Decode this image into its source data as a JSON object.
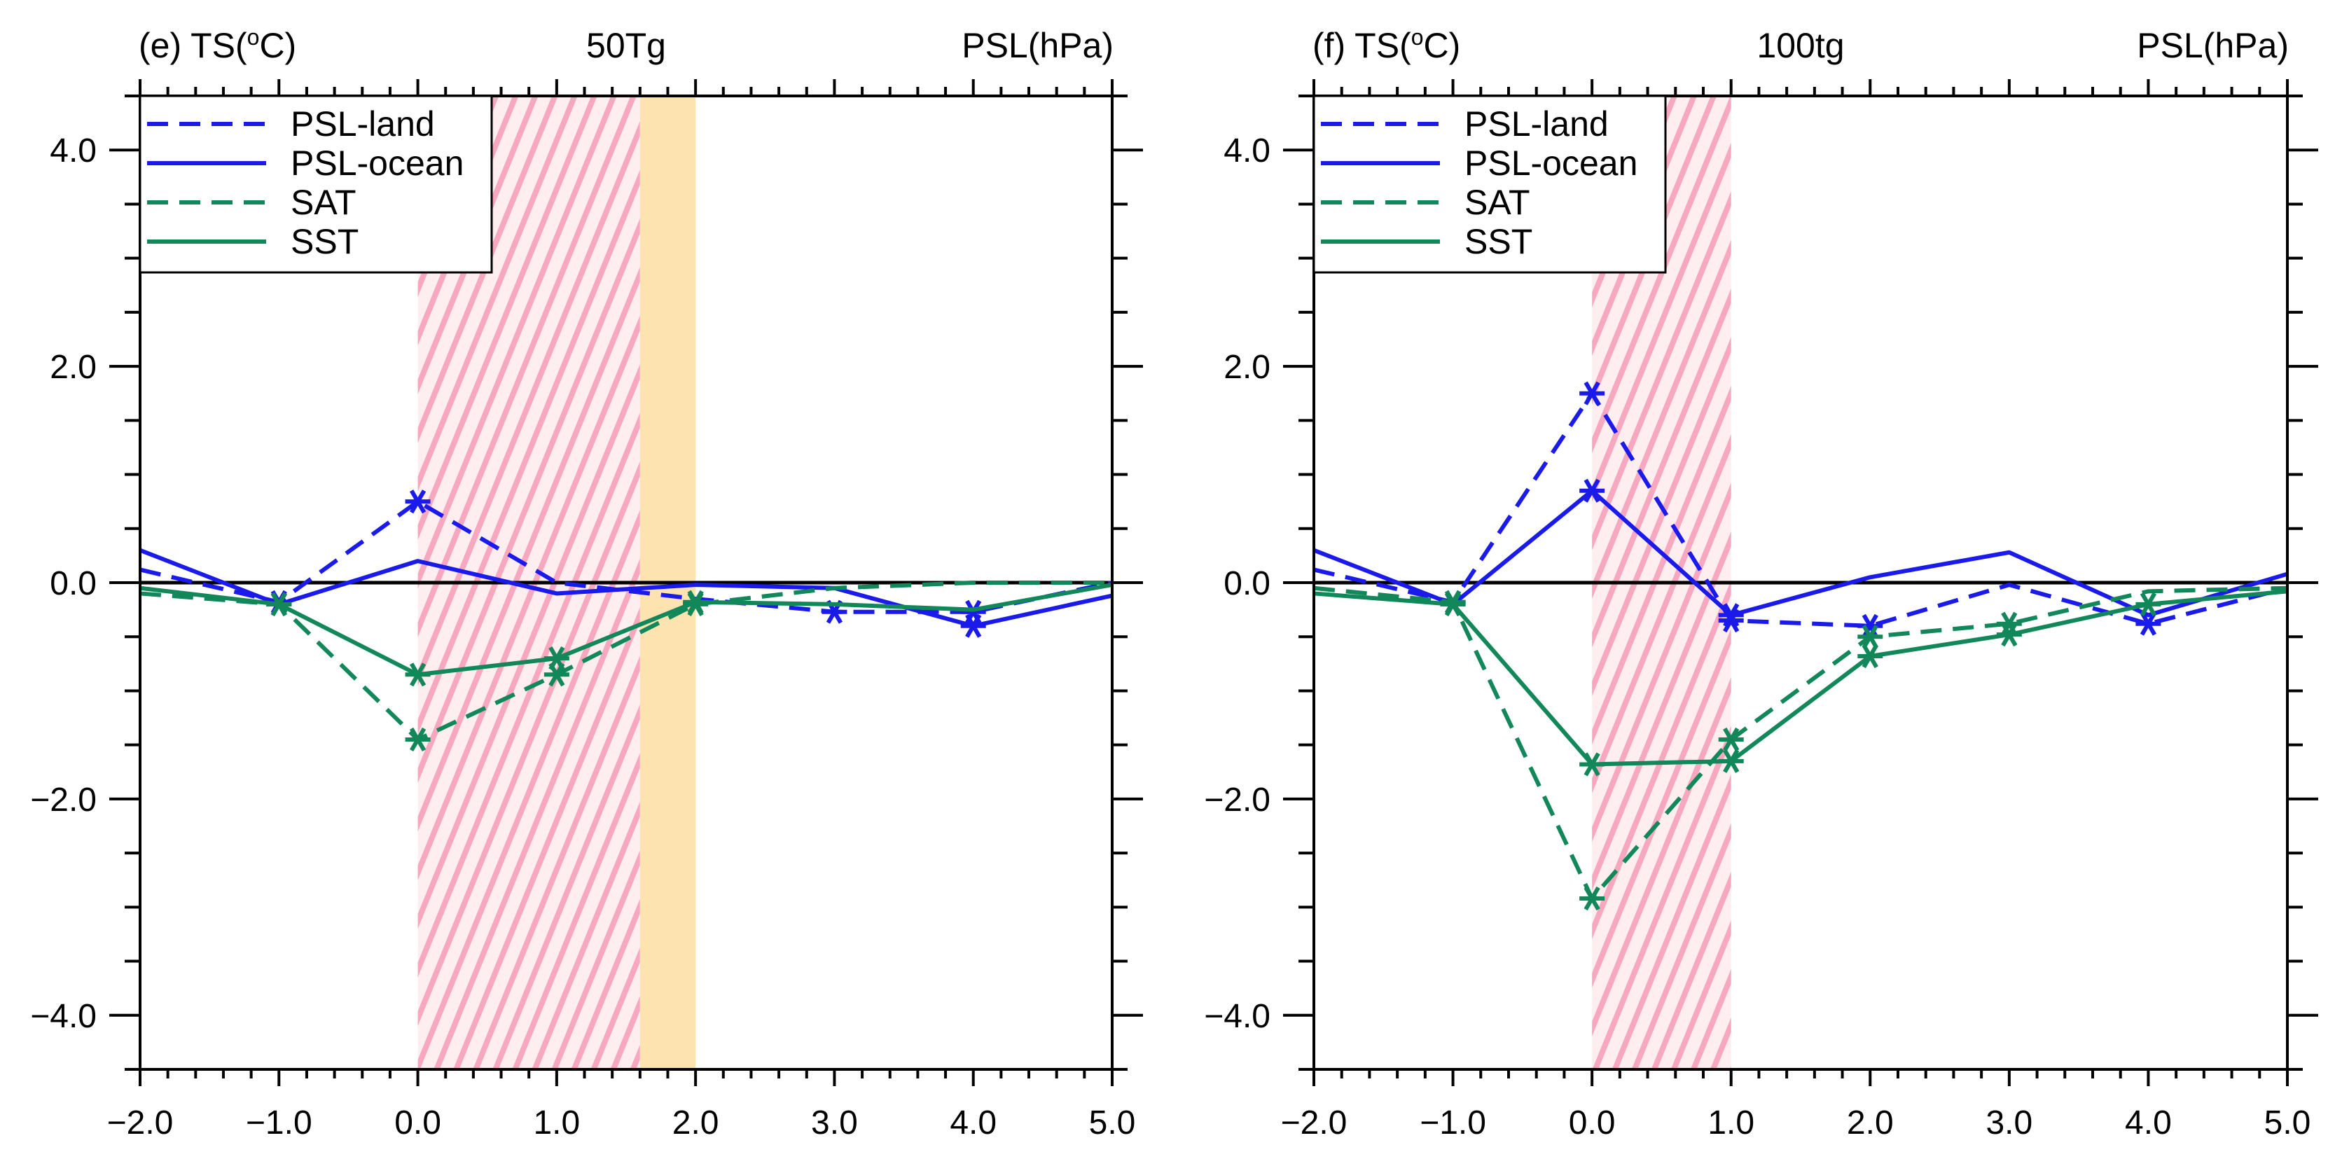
{
  "chart_data": [
    {
      "type": "line",
      "title": "50Tg",
      "left_label": "(e) TS(",
      "left_label_sup": "o",
      "left_label_tail": "C)",
      "right_label": "PSL(hPa)",
      "xlim": [
        -2.0,
        5.0
      ],
      "ylim": [
        -4.5,
        4.5
      ],
      "xticks": [
        -2.0,
        -1.0,
        0.0,
        1.0,
        2.0,
        3.0,
        4.0,
        5.0
      ],
      "xtick_labels": [
        "−2.0",
        "−1.0",
        "0.0",
        "1.0",
        "2.0",
        "3.0",
        "4.0",
        "5.0"
      ],
      "yticks": [
        4.0,
        2.0,
        0.0,
        -2.0,
        -4.0
      ],
      "ytick_labels": [
        "4.0",
        "2.0",
        "0.0",
        "−2.0",
        "−4.0"
      ],
      "shading": [
        {
          "kind": "hatched",
          "x0": 0.0,
          "x1": 1.6
        },
        {
          "kind": "solid",
          "x0": 1.6,
          "x1": 2.0
        }
      ],
      "x": [
        -2.0,
        -1.0,
        0.0,
        1.0,
        2.0,
        3.0,
        4.0,
        5.0
      ],
      "series": [
        {
          "name": "PSL-land",
          "values": [
            0.12,
            -0.18,
            0.75,
            0.0,
            -0.15,
            -0.27,
            -0.27,
            0.0
          ],
          "markers": [
            1,
            2,
            5,
            6
          ]
        },
        {
          "name": "PSL-ocean",
          "values": [
            0.3,
            -0.2,
            0.2,
            -0.1,
            -0.02,
            -0.05,
            -0.4,
            -0.12
          ],
          "markers": [
            1,
            6
          ]
        },
        {
          "name": "SAT",
          "values": [
            -0.1,
            -0.2,
            -1.45,
            -0.85,
            -0.2,
            -0.05,
            0.0,
            0.0
          ],
          "markers": [
            1,
            2,
            3,
            4
          ]
        },
        {
          "name": "SST",
          "values": [
            -0.05,
            -0.2,
            -0.85,
            -0.7,
            -0.18,
            -0.2,
            -0.25,
            -0.02
          ],
          "markers": [
            1,
            2,
            3,
            4
          ]
        }
      ]
    },
    {
      "type": "line",
      "title": "100tg",
      "left_label": "(f) TS(",
      "left_label_sup": "o",
      "left_label_tail": "C)",
      "right_label": "PSL(hPa)",
      "xlim": [
        -2.0,
        5.0
      ],
      "ylim": [
        -4.5,
        4.5
      ],
      "xticks": [
        -2.0,
        -1.0,
        0.0,
        1.0,
        2.0,
        3.0,
        4.0,
        5.0
      ],
      "xtick_labels": [
        "−2.0",
        "−1.0",
        "0.0",
        "1.0",
        "2.0",
        "3.0",
        "4.0",
        "5.0"
      ],
      "yticks": [
        4.0,
        2.0,
        0.0,
        -2.0,
        -4.0
      ],
      "ytick_labels": [
        "4.0",
        "2.0",
        "0.0",
        "−2.0",
        "−4.0"
      ],
      "shading": [
        {
          "kind": "hatched",
          "x0": 0.0,
          "x1": 1.0
        }
      ],
      "x": [
        -2.0,
        -1.0,
        0.0,
        1.0,
        2.0,
        3.0,
        4.0,
        5.0
      ],
      "series": [
        {
          "name": "PSL-land",
          "values": [
            0.12,
            -0.18,
            1.75,
            -0.35,
            -0.4,
            -0.02,
            -0.38,
            -0.05
          ],
          "markers": [
            1,
            2,
            3,
            4,
            6
          ]
        },
        {
          "name": "PSL-ocean",
          "values": [
            0.3,
            -0.2,
            0.85,
            -0.3,
            0.05,
            0.28,
            -0.3,
            0.08
          ],
          "markers": [
            1,
            2,
            3
          ]
        },
        {
          "name": "SAT",
          "values": [
            -0.05,
            -0.18,
            -2.92,
            -1.45,
            -0.5,
            -0.38,
            -0.08,
            -0.05
          ],
          "markers": [
            1,
            2,
            3,
            4,
            5
          ]
        },
        {
          "name": "SST",
          "values": [
            -0.1,
            -0.2,
            -1.68,
            -1.65,
            -0.68,
            -0.48,
            -0.2,
            -0.08
          ],
          "markers": [
            1,
            2,
            3,
            4,
            5,
            6
          ]
        }
      ]
    }
  ],
  "legend": [
    {
      "name": "PSL-land",
      "color": "#1a1aeb",
      "dash": "dashed"
    },
    {
      "name": "PSL-ocean",
      "color": "#1a1aeb",
      "dash": "solid"
    },
    {
      "name": "SAT",
      "color": "#11875a",
      "dash": "dashed"
    },
    {
      "name": "SST",
      "color": "#11875a",
      "dash": "solid"
    }
  ],
  "colors": {
    "psl": "#1a1aeb",
    "ts": "#11875a",
    "hatch": "#f7a8c0",
    "hatch_bg": "#ffecd2",
    "solid_shade": "#fde3b0"
  }
}
